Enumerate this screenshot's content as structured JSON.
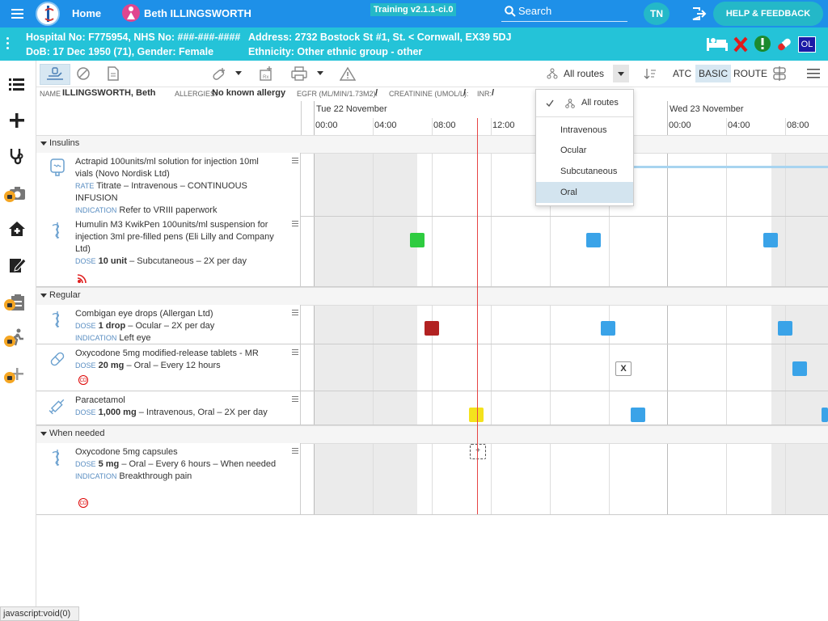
{
  "topbar": {
    "home": "Home",
    "patient_name": "Beth ILLINGSWORTH",
    "training": "Training v2.1.1-ci.0",
    "search": "Search",
    "user_initials": "TN",
    "help": "HELP & FEEDBACK"
  },
  "patient": {
    "line1": "Hospital No: F775954, NHS No: ###-###-####",
    "address": "Address: 2732 Bostock St #1, St. < Cornwall, EX39 5DJ",
    "line2": "DoB: 17 Dec 1950 (71), Gender: Female",
    "ethnicity": "Ethnicity: Other ethnic group - other",
    "ol_badge": "OL"
  },
  "toolbar": {
    "route_filter": "All routes",
    "atc": "ATC",
    "basic": "BASIC",
    "route": "ROUTE"
  },
  "info": {
    "name_label": "NAME",
    "name": "ILLINGSWORTH, Beth",
    "allergies_label": "ALLERGIES:",
    "allergies": "No known allergy",
    "egfr_label": "EGFR (ML/MIN/1.73M2):",
    "egfr": "/",
    "creat_label": "CREATININE (UMOL/L):",
    "creat": "/",
    "inr_label": "INR:",
    "inr": "/"
  },
  "timeline": {
    "day1": "Tue 22 November",
    "day2": "Wed 23 November",
    "hours": [
      "00:00",
      "04:00",
      "08:00",
      "12:00",
      "00:00",
      "04:00",
      "08:00"
    ]
  },
  "sections": {
    "insulins": "Insulins",
    "regular": "Regular",
    "when_needed": "When needed"
  },
  "meds": [
    {
      "name": "Actrapid 100units/ml solution for injection 10ml vials (Novo Nordisk Ltd)",
      "l1_label": "RATE",
      "l1": "Titrate – Intravenous – CONTINUOUS INFUSION",
      "l2_label": "INDICATION",
      "l2": "Refer to VRIII paperwork"
    },
    {
      "name": "Humulin M3 KwikPen 100units/ml suspension for injection 3ml pre-filled pens (Eli Lilly and Company Ltd)",
      "l1_label": "DOSE",
      "l1_bold": "10 unit",
      "l1": "– Subcutaneous – 2X per day"
    },
    {
      "name": "Combigan eye drops (Allergan Ltd)",
      "l1_label": "DOSE",
      "l1_bold": "1 drop",
      "l1": "– Ocular – 2X per day",
      "l2_label": "INDICATION",
      "l2": "Left eye"
    },
    {
      "name": "Oxycodone 5mg modified-release tablets - MR",
      "l1_label": "DOSE",
      "l1_bold": "20 mg",
      "l1": "– Oral – Every 12 hours",
      "cd": "CD"
    },
    {
      "name": "Paracetamol",
      "l1_label": "DOSE",
      "l1_bold": "1,000 mg",
      "l1": "– Intravenous, Oral – 2X per day"
    },
    {
      "name": "Oxycodone 5mg capsules",
      "l1_label": "DOSE",
      "l1_bold": "5 mg",
      "l1": "– Oral – Every 6 hours – When needed",
      "l2_label": "INDICATION",
      "l2": "Breakthrough pain",
      "cd": "CD"
    }
  ],
  "omitted_marker": "X",
  "add_marker": "+",
  "dropdown": {
    "options": [
      "All routes",
      "Intravenous",
      "Ocular",
      "Subcutaneous",
      "Oral"
    ],
    "checked": "All routes",
    "highlighted": "Oral"
  },
  "status_text": "javascript:void(0)",
  "colors": {
    "nav_blue": "#1e90e8",
    "patient_bar": "#24c3d8",
    "given_green": "#2ecc40",
    "due_blue": "#3aa3e8",
    "missed_red": "#b22222",
    "pending_yellow": "#f4e21d",
    "now_line": "#e64444"
  }
}
